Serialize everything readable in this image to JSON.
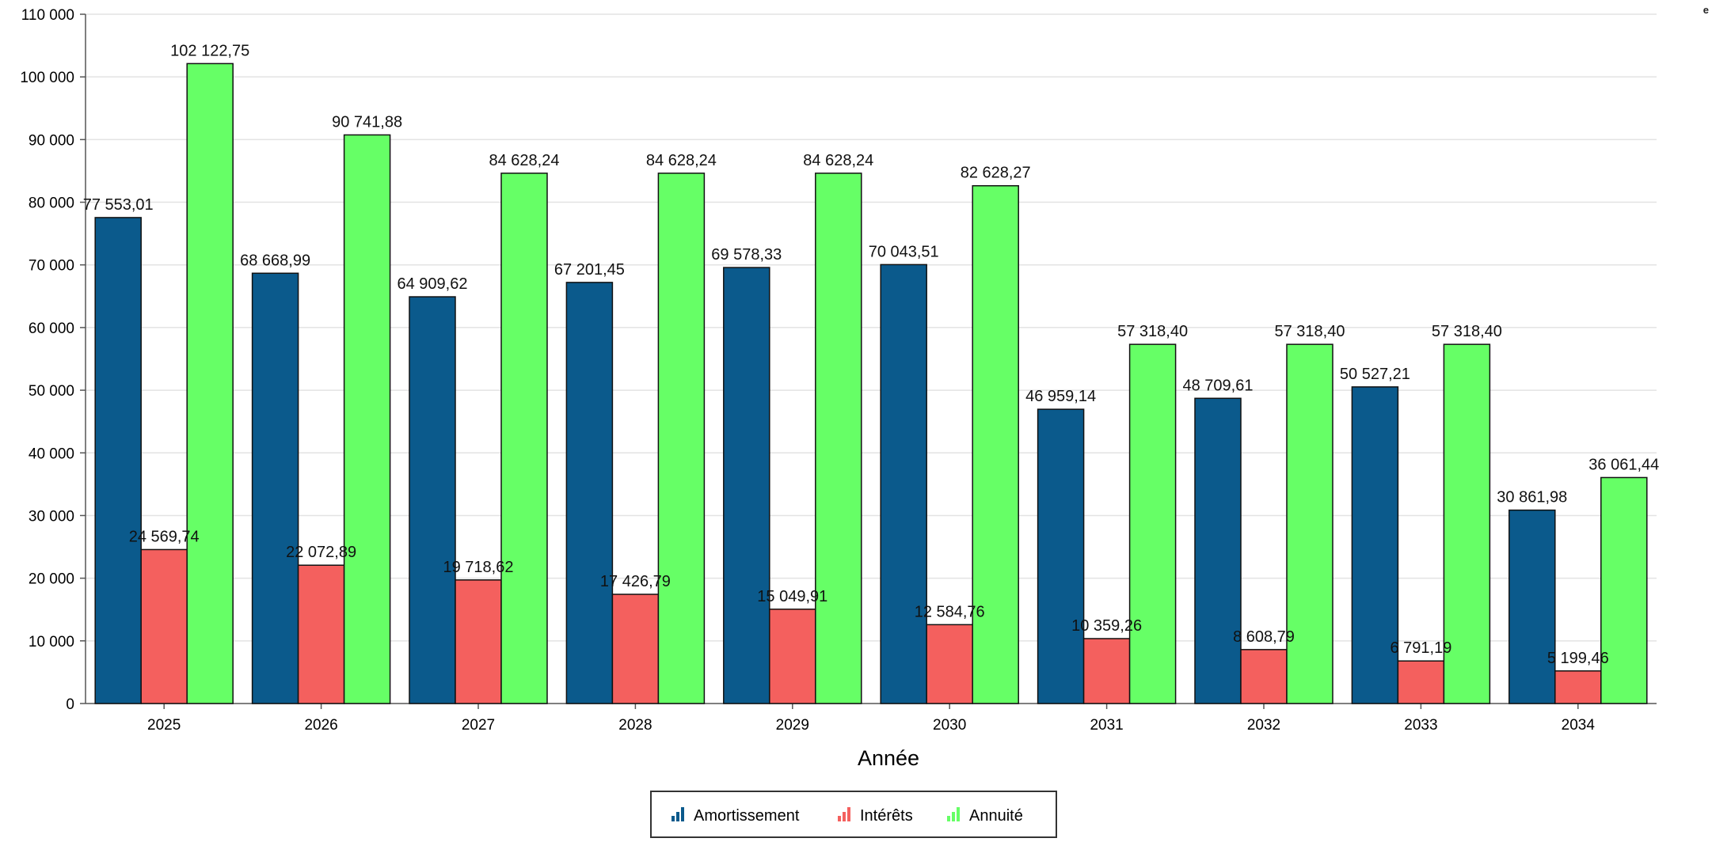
{
  "corner_text": "e",
  "chart_data": {
    "type": "bar",
    "title": "",
    "xlabel": "Année",
    "ylabel": "",
    "ylim": [
      0,
      110000
    ],
    "yticks": [
      0,
      10000,
      20000,
      30000,
      40000,
      50000,
      60000,
      70000,
      80000,
      90000,
      100000,
      110000
    ],
    "ytick_labels": [
      "0",
      "10 000",
      "20 000",
      "30 000",
      "40 000",
      "50 000",
      "60 000",
      "70 000",
      "80 000",
      "90 000",
      "100 000",
      "110 000"
    ],
    "grid": true,
    "legend_position": "bottom-center",
    "categories": [
      "2025",
      "2026",
      "2027",
      "2028",
      "2029",
      "2030",
      "2031",
      "2032",
      "2033",
      "2034"
    ],
    "series": [
      {
        "name": "Amortissement",
        "color": "#0b5a8c",
        "icon": "bar-chart-icon",
        "values": [
          77553.01,
          68668.99,
          64909.62,
          67201.45,
          69578.33,
          70043.51,
          46959.14,
          48709.61,
          50527.21,
          30861.98
        ],
        "labels": [
          "77 553,01",
          "68 668,99",
          "64 909,62",
          "67 201,45",
          "69 578,33",
          "70 043,51",
          "46 959,14",
          "48 709,61",
          "50 527,21",
          "30 861,98"
        ]
      },
      {
        "name": "Intérêts",
        "color": "#f4605e",
        "icon": "bar-chart-icon",
        "values": [
          24569.74,
          22072.89,
          19718.62,
          17426.79,
          15049.91,
          12584.76,
          10359.26,
          8608.79,
          6791.19,
          5199.46
        ],
        "labels": [
          "24 569,74",
          "22 072,89",
          "19 718,62",
          "17 426,79",
          "15 049,91",
          "12 584,76",
          "10 359,26",
          "8 608,79",
          "6 791,19",
          "5 199,46"
        ]
      },
      {
        "name": "Annuité",
        "color": "#66ff66",
        "icon": "bar-chart-icon",
        "values": [
          102122.75,
          90741.88,
          84628.24,
          84628.24,
          84628.24,
          82628.27,
          57318.4,
          57318.4,
          57318.4,
          36061.44
        ],
        "labels": [
          "102 122,75",
          "90 741,88",
          "84 628,24",
          "84 628,24",
          "84 628,24",
          "82 628,27",
          "57 318,40",
          "57 318,40",
          "57 318,40",
          "36 061,44"
        ]
      }
    ]
  }
}
